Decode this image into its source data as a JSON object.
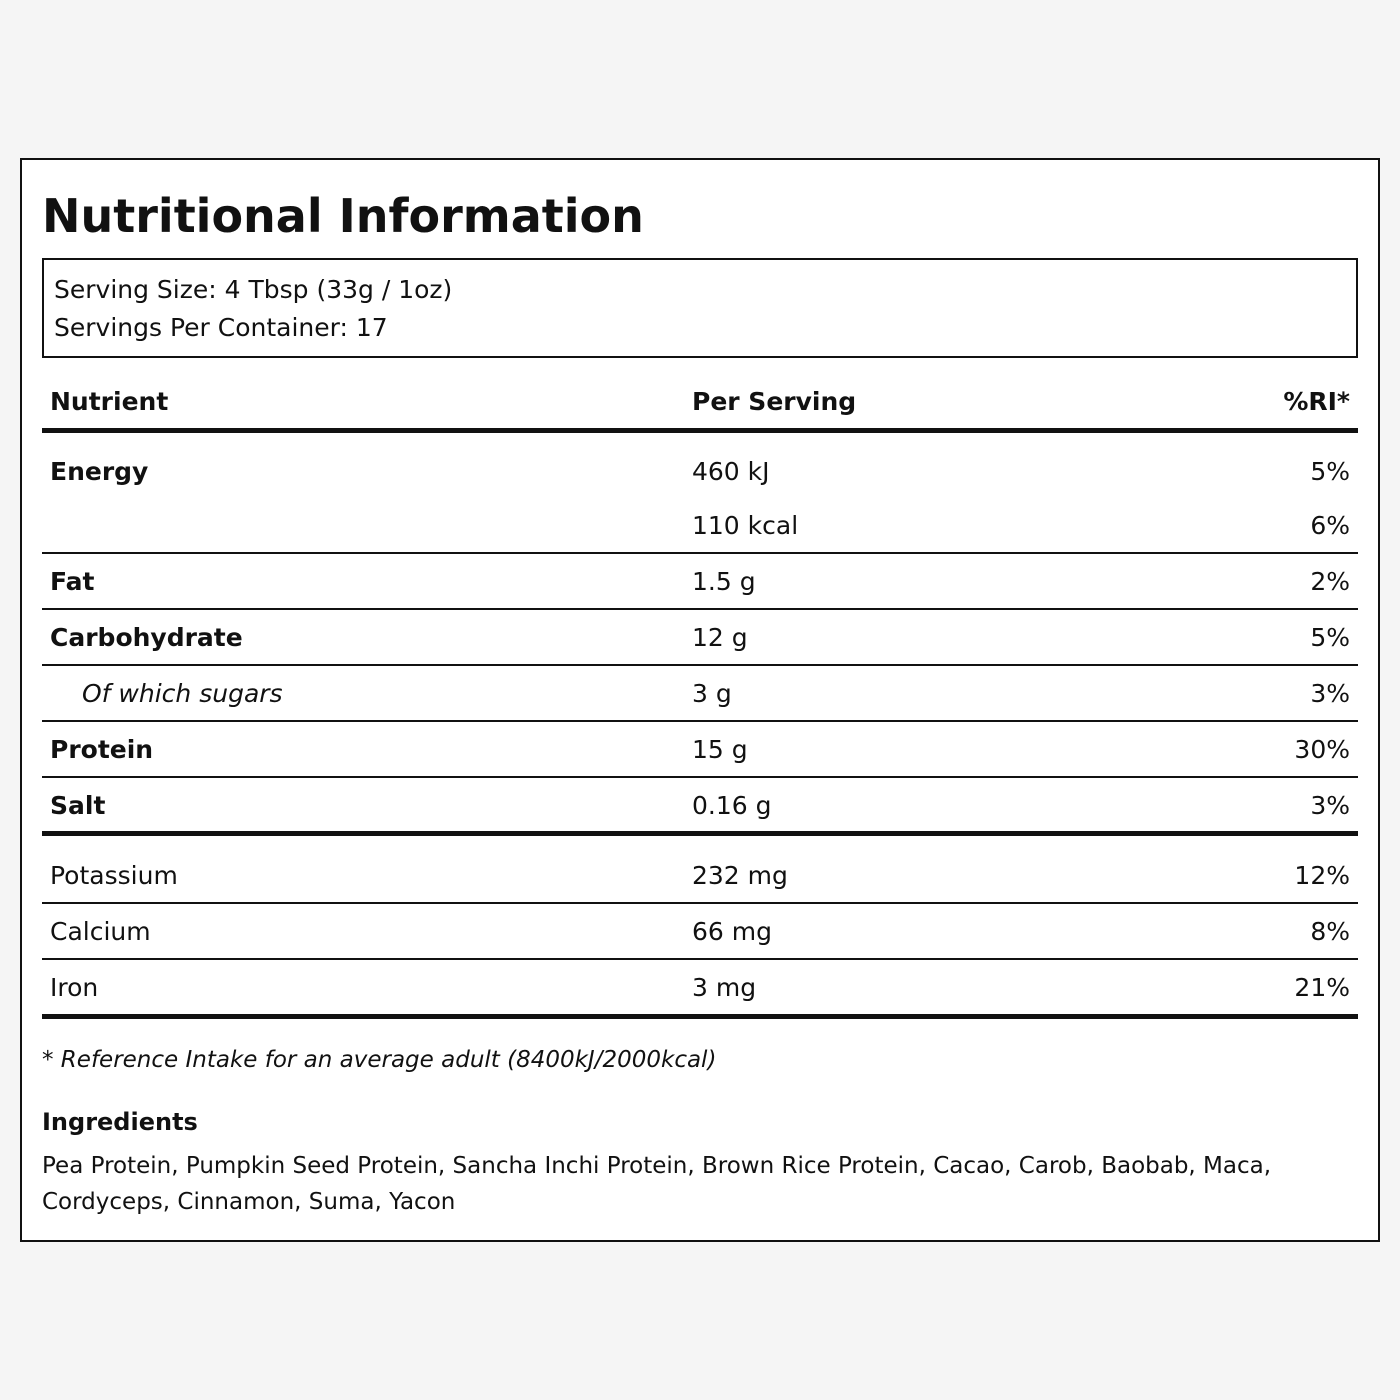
{
  "header": {
    "title": "Nutritional Information"
  },
  "serving": {
    "size": "Serving Size: 4 Tbsp (33g / 1oz)",
    "per_container": "Servings Per Container: 17"
  },
  "table": {
    "columns": [
      "Nutrient",
      "Per Serving",
      "%RI*"
    ],
    "rows": [
      {
        "nutrient": "Energy",
        "values": [
          {
            "amount": "460 kJ",
            "ri": "5%"
          },
          {
            "amount": "110 kcal",
            "ri": "6%"
          }
        ]
      },
      {
        "nutrient": "Fat",
        "values": [
          {
            "amount": "1.5 g",
            "ri": "2%"
          }
        ]
      },
      {
        "nutrient": "Carbohydrate",
        "values": [
          {
            "amount": "12 g",
            "ri": "5%"
          }
        ]
      },
      {
        "nutrient": "Of which sugars",
        "values": [
          {
            "amount": "3 g",
            "ri": "3%"
          }
        ]
      },
      {
        "nutrient": "Protein",
        "values": [
          {
            "amount": "15 g",
            "ri": "30%"
          }
        ]
      },
      {
        "nutrient": "Salt",
        "values": [
          {
            "amount": "0.16 g",
            "ri": "3%"
          }
        ]
      },
      {
        "nutrient": "Potassium",
        "values": [
          {
            "amount": "232 mg",
            "ri": "12%"
          }
        ]
      },
      {
        "nutrient": "Calcium",
        "values": [
          {
            "amount": "66 mg",
            "ri": "8%"
          }
        ]
      },
      {
        "nutrient": "Iron",
        "values": [
          {
            "amount": "3 mg",
            "ri": "21%"
          }
        ]
      }
    ]
  },
  "footnote": "* Reference Intake for an average adult (8400kJ/2000kcal)",
  "ingredients": {
    "title": "Ingredients",
    "text": "Pea Protein, Pumpkin Seed Protein, Sancha Inchi Protein, Brown Rice Protein, Cacao, Carob, Baobab, Maca, Cordyceps, Cinnamon, Suma, Yacon"
  }
}
